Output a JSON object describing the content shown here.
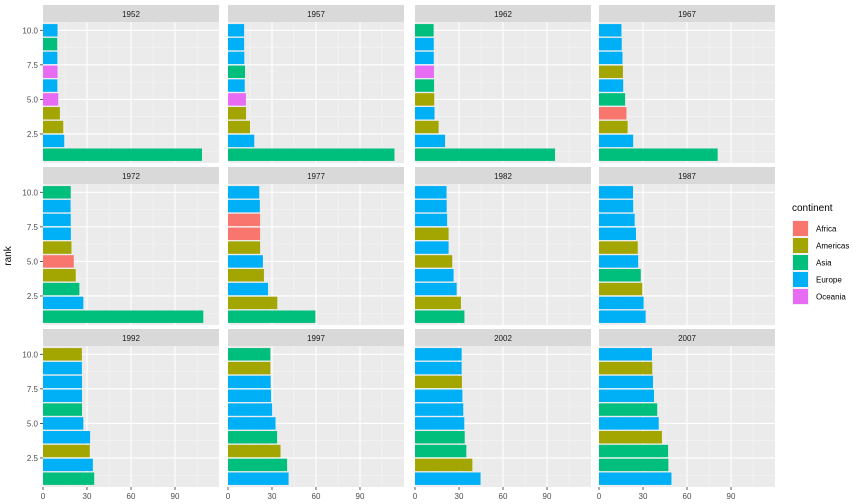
{
  "chart_data": {
    "type": "bar",
    "orientation": "horizontal",
    "facet_variable": "year",
    "ylabel": "rank",
    "xlabel": "",
    "xlim": [
      0,
      120
    ],
    "ylim": [
      0.4,
      10.6
    ],
    "x_ticks": [
      "0",
      "30",
      "60",
      "90"
    ],
    "x_tick_values": [
      0,
      30,
      60,
      90
    ],
    "y_ticks": [
      "2.5",
      "5.0",
      "7.5",
      "10.0"
    ],
    "y_tick_values": [
      2.5,
      5.0,
      7.5,
      10.0
    ],
    "grid": true,
    "legend": {
      "title": "continent",
      "position": "right",
      "entries": [
        {
          "label": "Africa",
          "color": "#F8766D"
        },
        {
          "label": "Americas",
          "color": "#A3A500"
        },
        {
          "label": "Asia",
          "color": "#00BF7D"
        },
        {
          "label": "Europe",
          "color": "#00B0F6"
        },
        {
          "label": "Oceania",
          "color": "#E76BF3"
        }
      ]
    },
    "panels": [
      {
        "year": "1952",
        "bars": [
          {
            "rank": 1,
            "value": 108.4,
            "continent": "Asia"
          },
          {
            "rank": 2,
            "value": 14.5,
            "continent": "Europe"
          },
          {
            "rank": 3,
            "value": 13.8,
            "continent": "Americas"
          },
          {
            "rank": 4,
            "value": 11.5,
            "continent": "Americas"
          },
          {
            "rank": 5,
            "value": 10.4,
            "continent": "Oceania"
          },
          {
            "rank": 6,
            "value": 9.8,
            "continent": "Europe"
          },
          {
            "rank": 7,
            "value": 9.9,
            "continent": "Oceania"
          },
          {
            "rank": 8,
            "value": 9.8,
            "continent": "Europe"
          },
          {
            "rank": 9,
            "value": 9.7,
            "continent": "Asia"
          },
          {
            "rank": 10,
            "value": 9.9,
            "continent": "Europe"
          }
        ]
      },
      {
        "year": "1957",
        "bars": [
          {
            "rank": 1,
            "value": 113.5,
            "continent": "Asia"
          },
          {
            "rank": 2,
            "value": 17.9,
            "continent": "Europe"
          },
          {
            "rank": 3,
            "value": 15.0,
            "continent": "Americas"
          },
          {
            "rank": 4,
            "value": 12.3,
            "continent": "Americas"
          },
          {
            "rank": 5,
            "value": 12.2,
            "continent": "Oceania"
          },
          {
            "rank": 6,
            "value": 11.4,
            "continent": "Europe"
          },
          {
            "rank": 7,
            "value": 11.6,
            "continent": "Asia"
          },
          {
            "rank": 8,
            "value": 11.1,
            "continent": "Europe"
          },
          {
            "rank": 9,
            "value": 11.0,
            "continent": "Europe"
          },
          {
            "rank": 10,
            "value": 11.0,
            "continent": "Europe"
          }
        ]
      },
      {
        "year": "1962",
        "bars": [
          {
            "rank": 1,
            "value": 95.5,
            "continent": "Asia"
          },
          {
            "rank": 2,
            "value": 20.5,
            "continent": "Europe"
          },
          {
            "rank": 3,
            "value": 16.1,
            "continent": "Americas"
          },
          {
            "rank": 4,
            "value": 13.3,
            "continent": "Europe"
          },
          {
            "rank": 5,
            "value": 13.1,
            "continent": "Americas"
          },
          {
            "rank": 6,
            "value": 13.0,
            "continent": "Asia"
          },
          {
            "rank": 7,
            "value": 12.9,
            "continent": "Oceania"
          },
          {
            "rank": 8,
            "value": 12.8,
            "continent": "Europe"
          },
          {
            "rank": 9,
            "value": 12.8,
            "continent": "Europe"
          },
          {
            "rank": 10,
            "value": 12.7,
            "continent": "Asia"
          }
        ]
      },
      {
        "year": "1967",
        "bars": [
          {
            "rank": 1,
            "value": 80.9,
            "continent": "Asia"
          },
          {
            "rank": 2,
            "value": 23.3,
            "continent": "Europe"
          },
          {
            "rank": 3,
            "value": 19.5,
            "continent": "Americas"
          },
          {
            "rank": 4,
            "value": 18.7,
            "continent": "Africa"
          },
          {
            "rank": 5,
            "value": 17.8,
            "continent": "Asia"
          },
          {
            "rank": 6,
            "value": 16.5,
            "continent": "Europe"
          },
          {
            "rank": 7,
            "value": 16.3,
            "continent": "Americas"
          },
          {
            "rank": 8,
            "value": 16.0,
            "continent": "Europe"
          },
          {
            "rank": 9,
            "value": 15.5,
            "continent": "Europe"
          },
          {
            "rank": 10,
            "value": 15.3,
            "continent": "Europe"
          }
        ]
      },
      {
        "year": "1972",
        "bars": [
          {
            "rank": 1,
            "value": 109.3,
            "continent": "Asia"
          },
          {
            "rank": 2,
            "value": 27.5,
            "continent": "Europe"
          },
          {
            "rank": 3,
            "value": 24.8,
            "continent": "Asia"
          },
          {
            "rank": 4,
            "value": 22.3,
            "continent": "Americas"
          },
          {
            "rank": 5,
            "value": 21.0,
            "continent": "Africa"
          },
          {
            "rank": 6,
            "value": 19.4,
            "continent": "Americas"
          },
          {
            "rank": 7,
            "value": 19.0,
            "continent": "Europe"
          },
          {
            "rank": 8,
            "value": 18.9,
            "continent": "Europe"
          },
          {
            "rank": 9,
            "value": 18.8,
            "continent": "Europe"
          },
          {
            "rank": 10,
            "value": 18.9,
            "continent": "Asia"
          }
        ]
      },
      {
        "year": "1977",
        "bars": [
          {
            "rank": 1,
            "value": 59.6,
            "continent": "Asia"
          },
          {
            "rank": 2,
            "value": 33.6,
            "continent": "Americas"
          },
          {
            "rank": 3,
            "value": 27.3,
            "continent": "Europe"
          },
          {
            "rank": 4,
            "value": 24.5,
            "continent": "Americas"
          },
          {
            "rank": 5,
            "value": 23.8,
            "continent": "Europe"
          },
          {
            "rank": 6,
            "value": 21.9,
            "continent": "Americas"
          },
          {
            "rank": 7,
            "value": 21.9,
            "continent": "Africa"
          },
          {
            "rank": 8,
            "value": 21.9,
            "continent": "Africa"
          },
          {
            "rank": 9,
            "value": 21.7,
            "continent": "Europe"
          },
          {
            "rank": 10,
            "value": 21.3,
            "continent": "Europe"
          }
        ]
      },
      {
        "year": "1982",
        "bars": [
          {
            "rank": 1,
            "value": 33.7,
            "continent": "Asia"
          },
          {
            "rank": 2,
            "value": 31.3,
            "continent": "Americas"
          },
          {
            "rank": 3,
            "value": 28.4,
            "continent": "Europe"
          },
          {
            "rank": 4,
            "value": 26.3,
            "continent": "Europe"
          },
          {
            "rank": 5,
            "value": 25.4,
            "continent": "Americas"
          },
          {
            "rank": 6,
            "value": 22.9,
            "continent": "Europe"
          },
          {
            "rank": 7,
            "value": 22.9,
            "continent": "Americas"
          },
          {
            "rank": 8,
            "value": 21.9,
            "continent": "Europe"
          },
          {
            "rank": 9,
            "value": 21.6,
            "continent": "Europe"
          },
          {
            "rank": 10,
            "value": 21.5,
            "continent": "Europe"
          }
        ]
      },
      {
        "year": "1987",
        "bars": [
          {
            "rank": 1,
            "value": 31.8,
            "continent": "Europe"
          },
          {
            "rank": 2,
            "value": 30.4,
            "continent": "Europe"
          },
          {
            "rank": 3,
            "value": 29.5,
            "continent": "Americas"
          },
          {
            "rank": 4,
            "value": 28.5,
            "continent": "Asia"
          },
          {
            "rank": 5,
            "value": 26.7,
            "continent": "Europe"
          },
          {
            "rank": 6,
            "value": 26.4,
            "continent": "Americas"
          },
          {
            "rank": 7,
            "value": 25.2,
            "continent": "Europe"
          },
          {
            "rank": 8,
            "value": 24.3,
            "continent": "Europe"
          },
          {
            "rank": 9,
            "value": 23.3,
            "continent": "Europe"
          },
          {
            "rank": 10,
            "value": 23.2,
            "continent": "Europe"
          }
        ]
      },
      {
        "year": "1992",
        "bars": [
          {
            "rank": 1,
            "value": 34.9,
            "continent": "Asia"
          },
          {
            "rank": 2,
            "value": 34.0,
            "continent": "Europe"
          },
          {
            "rank": 3,
            "value": 31.9,
            "continent": "Americas"
          },
          {
            "rank": 4,
            "value": 32.1,
            "continent": "Europe"
          },
          {
            "rank": 5,
            "value": 27.5,
            "continent": "Europe"
          },
          {
            "rank": 6,
            "value": 26.6,
            "continent": "Asia"
          },
          {
            "rank": 7,
            "value": 26.6,
            "continent": "Europe"
          },
          {
            "rank": 8,
            "value": 26.6,
            "continent": "Europe"
          },
          {
            "rank": 9,
            "value": 26.5,
            "continent": "Europe"
          },
          {
            "rank": 10,
            "value": 26.5,
            "continent": "Americas"
          }
        ]
      },
      {
        "year": "1997",
        "bars": [
          {
            "rank": 1,
            "value": 41.3,
            "continent": "Europe"
          },
          {
            "rank": 2,
            "value": 40.3,
            "continent": "Asia"
          },
          {
            "rank": 3,
            "value": 35.8,
            "continent": "Americas"
          },
          {
            "rank": 4,
            "value": 33.5,
            "continent": "Asia"
          },
          {
            "rank": 5,
            "value": 32.4,
            "continent": "Europe"
          },
          {
            "rank": 6,
            "value": 30.1,
            "continent": "Europe"
          },
          {
            "rank": 7,
            "value": 29.4,
            "continent": "Europe"
          },
          {
            "rank": 8,
            "value": 29.1,
            "continent": "Europe"
          },
          {
            "rank": 9,
            "value": 28.9,
            "continent": "Americas"
          },
          {
            "rank": 10,
            "value": 28.9,
            "continent": "Asia"
          }
        ]
      },
      {
        "year": "2002",
        "bars": [
          {
            "rank": 1,
            "value": 44.7,
            "continent": "Europe"
          },
          {
            "rank": 2,
            "value": 39.1,
            "continent": "Americas"
          },
          {
            "rank": 3,
            "value": 35.0,
            "continent": "Asia"
          },
          {
            "rank": 4,
            "value": 33.9,
            "continent": "Asia"
          },
          {
            "rank": 5,
            "value": 33.6,
            "continent": "Europe"
          },
          {
            "rank": 6,
            "value": 32.9,
            "continent": "Europe"
          },
          {
            "rank": 7,
            "value": 32.3,
            "continent": "Europe"
          },
          {
            "rank": 8,
            "value": 32.0,
            "continent": "Americas"
          },
          {
            "rank": 9,
            "value": 31.8,
            "continent": "Europe"
          },
          {
            "rank": 10,
            "value": 31.8,
            "continent": "Europe"
          }
        ]
      },
      {
        "year": "2007",
        "bars": [
          {
            "rank": 1,
            "value": 49.4,
            "continent": "Europe"
          },
          {
            "rank": 2,
            "value": 47.3,
            "continent": "Asia"
          },
          {
            "rank": 3,
            "value": 47.1,
            "continent": "Asia"
          },
          {
            "rank": 4,
            "value": 42.9,
            "continent": "Americas"
          },
          {
            "rank": 5,
            "value": 40.7,
            "continent": "Europe"
          },
          {
            "rank": 6,
            "value": 39.7,
            "continent": "Asia"
          },
          {
            "rank": 7,
            "value": 37.5,
            "continent": "Europe"
          },
          {
            "rank": 8,
            "value": 36.8,
            "continent": "Europe"
          },
          {
            "rank": 9,
            "value": 36.3,
            "continent": "Americas"
          },
          {
            "rank": 10,
            "value": 36.1,
            "continent": "Europe"
          }
        ]
      }
    ]
  }
}
